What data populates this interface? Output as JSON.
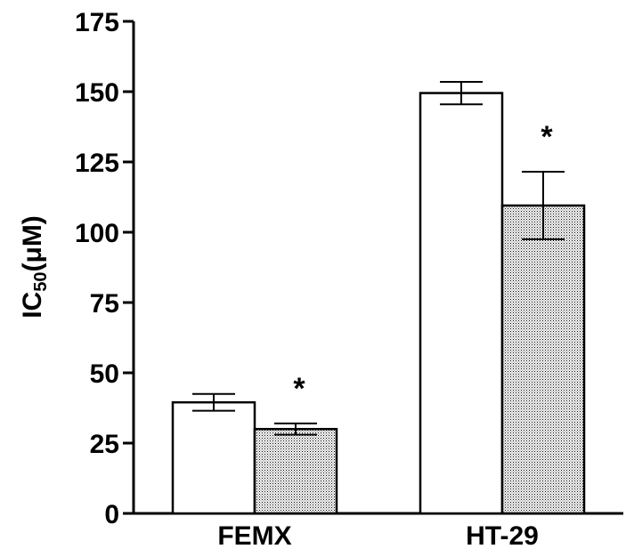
{
  "chart_data": {
    "type": "bar",
    "categories": [
      "FEMX",
      "HT-29"
    ],
    "ylabel": {
      "main": "IC",
      "sub": "50",
      "unit": "(μM)"
    },
    "ylim": [
      0,
      175
    ],
    "yticks": [
      0,
      25,
      50,
      75,
      100,
      125,
      150,
      175
    ],
    "grid": false,
    "series": [
      {
        "style": "open",
        "fill": "#ffffff",
        "values": [
          39.5,
          149.5
        ],
        "errors": [
          3,
          4
        ]
      },
      {
        "style": "stippled",
        "fill": "#c8c8c8",
        "values": [
          30,
          109.5
        ],
        "errors": [
          2,
          12
        ]
      }
    ],
    "annotations": [
      {
        "text": "*",
        "category": "FEMX",
        "series": 1
      },
      {
        "text": "*",
        "category": "HT-29",
        "series": 1
      }
    ]
  }
}
